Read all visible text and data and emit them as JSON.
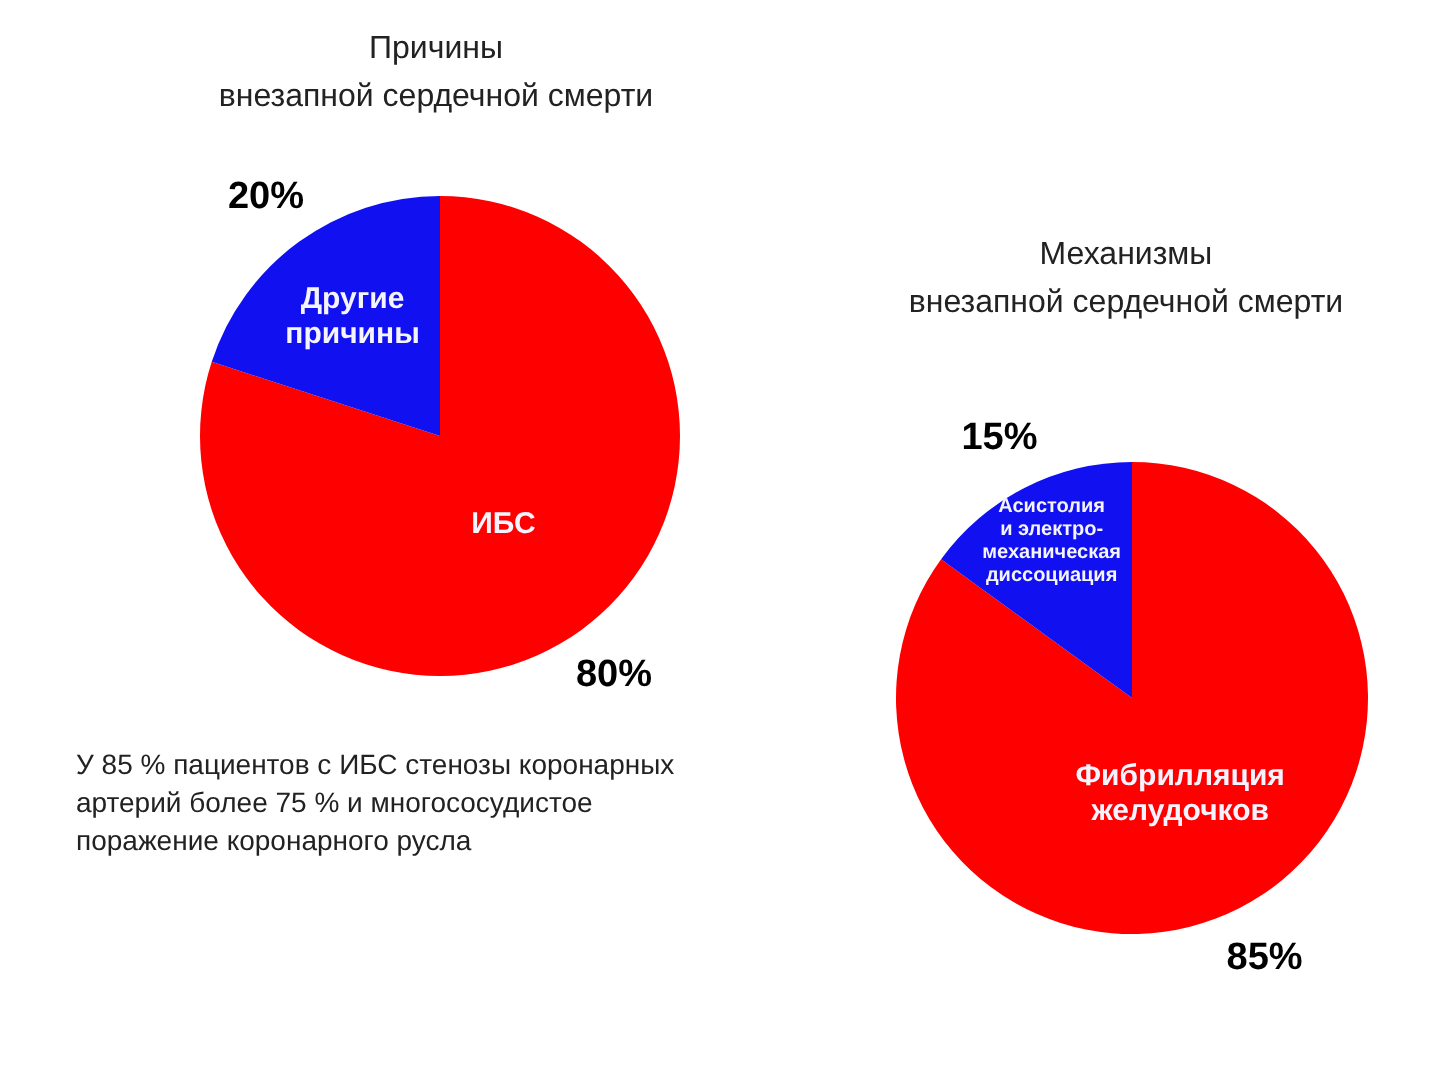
{
  "chart_data": [
    {
      "type": "pie",
      "title": "Причины\nвнезапной сердечной смерти",
      "categories": [
        "ИБС",
        "Другие\nпричины"
      ],
      "values": [
        80,
        20
      ],
      "colors": [
        "#ff0000",
        "#1010f0"
      ],
      "value_labels": [
        "80%",
        "20%"
      ],
      "annotations": [
        "У 85 % пациентов с ИБС стенозы коронарных артерий более 75 % и многососудистое поражение коронарного русла"
      ]
    },
    {
      "type": "pie",
      "title": "Механизмы\nвнезапной сердечной смерти",
      "categories": [
        "Фибрилляция\nжелудочков",
        "Асистолия\nи электро-\nмеханическая\nдиссоциация"
      ],
      "values": [
        85,
        15
      ],
      "colors": [
        "#ff0000",
        "#1010f0"
      ],
      "value_labels": [
        "85%",
        "15%"
      ]
    }
  ]
}
